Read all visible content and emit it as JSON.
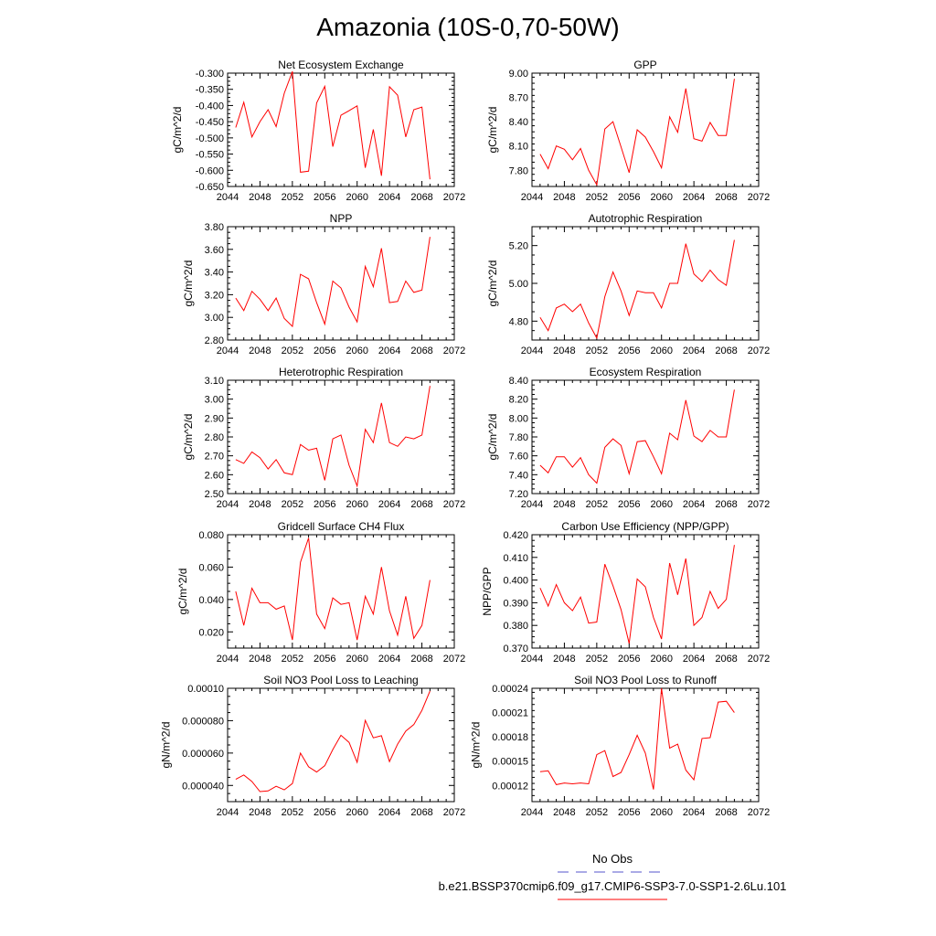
{
  "page": {
    "title": "Amazonia (10S-0,70-50W)"
  },
  "legend": {
    "entries": [
      {
        "label": "No Obs",
        "color": "#5555cc",
        "style": "dashed"
      },
      {
        "label": "b.e21.BSSP370cmip6.f09_g17.CMIP6-SSP3-7.0-SSP1-2.6Lu.101",
        "color": "#ff0000",
        "style": "solid"
      }
    ]
  },
  "chart_data": [
    {
      "type": "line",
      "title": "Net Ecosystem Exchange",
      "xlabel": "",
      "ylabel": "gC/m^2/d",
      "xlim": [
        2044,
        2072
      ],
      "ylim": [
        -0.65,
        -0.3
      ],
      "xticks": [
        "2044",
        "2048",
        "2052",
        "2056",
        "2060",
        "2064",
        "2068",
        "2072"
      ],
      "yticks": [
        -0.3,
        -0.35,
        -0.4,
        -0.45,
        -0.5,
        -0.55,
        -0.6,
        -0.65
      ],
      "yticklabels": [
        "-0.300",
        "-0.350",
        "-0.400",
        "-0.450",
        "-0.500",
        "-0.550",
        "-0.600",
        "-0.650"
      ],
      "color": "#ff0000",
      "x": [
        2045,
        2046,
        2047,
        2048,
        2049,
        2050,
        2051,
        2052,
        2053,
        2054,
        2055,
        2056,
        2057,
        2058,
        2059,
        2060,
        2061,
        2062,
        2063,
        2064,
        2065,
        2066,
        2067,
        2068,
        2069
      ],
      "y": [
        -0.468,
        -0.39,
        -0.497,
        -0.45,
        -0.413,
        -0.465,
        -0.362,
        -0.295,
        -0.606,
        -0.603,
        -0.392,
        -0.341,
        -0.527,
        -0.43,
        -0.416,
        -0.401,
        -0.592,
        -0.474,
        -0.617,
        -0.342,
        -0.368,
        -0.497,
        -0.413,
        -0.405,
        -0.628
      ]
    },
    {
      "type": "line",
      "title": "GPP",
      "xlabel": "",
      "ylabel": "gC/m^2/d",
      "xlim": [
        2044,
        2072
      ],
      "ylim": [
        7.6,
        9.0
      ],
      "xticks": [
        "2044",
        "2048",
        "2052",
        "2056",
        "2060",
        "2064",
        "2068",
        "2072"
      ],
      "yticks": [
        9.0,
        8.7,
        8.4,
        8.1,
        7.8
      ],
      "yticklabels": [
        "9.00",
        "8.70",
        "8.40",
        "8.10",
        "7.80"
      ],
      "color": "#ff0000",
      "x": [
        2045,
        2046,
        2047,
        2048,
        2049,
        2050,
        2051,
        2052,
        2053,
        2054,
        2055,
        2056,
        2057,
        2058,
        2059,
        2060,
        2061,
        2062,
        2063,
        2064,
        2065,
        2066,
        2067,
        2068,
        2069
      ],
      "y": [
        8.0,
        7.82,
        8.1,
        8.06,
        7.93,
        8.07,
        7.8,
        7.62,
        8.31,
        8.4,
        8.09,
        7.77,
        8.3,
        8.21,
        8.03,
        7.83,
        8.46,
        8.27,
        8.81,
        8.19,
        8.16,
        8.39,
        8.23,
        8.23,
        8.93
      ]
    },
    {
      "type": "line",
      "title": "NPP",
      "xlabel": "",
      "ylabel": "gC/m^2/d",
      "xlim": [
        2044,
        2072
      ],
      "ylim": [
        2.8,
        3.8
      ],
      "xticks": [
        "2044",
        "2048",
        "2052",
        "2056",
        "2060",
        "2064",
        "2068",
        "2072"
      ],
      "yticks": [
        3.8,
        3.6,
        3.4,
        3.2,
        3.0,
        2.8
      ],
      "yticklabels": [
        "3.80",
        "3.60",
        "3.40",
        "3.20",
        "3.00",
        "2.80"
      ],
      "color": "#ff0000",
      "x": [
        2045,
        2046,
        2047,
        2048,
        2049,
        2050,
        2051,
        2052,
        2053,
        2054,
        2055,
        2056,
        2057,
        2058,
        2059,
        2060,
        2061,
        2062,
        2063,
        2064,
        2065,
        2066,
        2067,
        2068,
        2069
      ],
      "y": [
        3.17,
        3.06,
        3.23,
        3.16,
        3.06,
        3.17,
        2.99,
        2.92,
        3.38,
        3.34,
        3.13,
        2.94,
        3.32,
        3.26,
        3.09,
        2.96,
        3.45,
        3.27,
        3.61,
        3.13,
        3.14,
        3.32,
        3.22,
        3.24,
        3.71
      ]
    },
    {
      "type": "line",
      "title": "Autotrophic Respiration",
      "xlabel": "",
      "ylabel": "gC/m^2/d",
      "xlim": [
        2044,
        2072
      ],
      "ylim": [
        4.7,
        5.3
      ],
      "xticks": [
        "2044",
        "2048",
        "2052",
        "2056",
        "2060",
        "2064",
        "2068",
        "2072"
      ],
      "yticks": [
        5.2,
        5.0,
        4.8
      ],
      "yticklabels": [
        "5.20",
        "5.00",
        "4.80"
      ],
      "color": "#ff0000",
      "x": [
        2045,
        2046,
        2047,
        2048,
        2049,
        2050,
        2051,
        2052,
        2053,
        2054,
        2055,
        2056,
        2057,
        2058,
        2059,
        2060,
        2061,
        2062,
        2063,
        2064,
        2065,
        2066,
        2067,
        2068,
        2069
      ],
      "y": [
        4.82,
        4.75,
        4.87,
        4.89,
        4.85,
        4.89,
        4.79,
        4.71,
        4.93,
        5.06,
        4.96,
        4.83,
        4.96,
        4.95,
        4.95,
        4.87,
        5.0,
        5.0,
        5.21,
        5.05,
        5.01,
        5.07,
        5.02,
        4.99,
        5.23
      ]
    },
    {
      "type": "line",
      "title": "Heterotrophic Respiration",
      "xlabel": "",
      "ylabel": "gC/m^2/d",
      "xlim": [
        2044,
        2072
      ],
      "ylim": [
        2.5,
        3.1
      ],
      "xticks": [
        "2044",
        "2048",
        "2052",
        "2056",
        "2060",
        "2064",
        "2068",
        "2072"
      ],
      "yticks": [
        3.1,
        3.0,
        2.9,
        2.8,
        2.7,
        2.6,
        2.5
      ],
      "yticklabels": [
        "3.10",
        "3.00",
        "2.90",
        "2.80",
        "2.70",
        "2.60",
        "2.50"
      ],
      "color": "#ff0000",
      "x": [
        2045,
        2046,
        2047,
        2048,
        2049,
        2050,
        2051,
        2052,
        2053,
        2054,
        2055,
        2056,
        2057,
        2058,
        2059,
        2060,
        2061,
        2062,
        2063,
        2064,
        2065,
        2066,
        2067,
        2068,
        2069
      ],
      "y": [
        2.68,
        2.66,
        2.72,
        2.69,
        2.63,
        2.68,
        2.61,
        2.6,
        2.76,
        2.73,
        2.74,
        2.57,
        2.79,
        2.81,
        2.65,
        2.54,
        2.84,
        2.77,
        2.98,
        2.77,
        2.75,
        2.8,
        2.79,
        2.81,
        3.07
      ]
    },
    {
      "type": "line",
      "title": "Ecosystem Respiration",
      "xlabel": "",
      "ylabel": "gC/m^2/d",
      "xlim": [
        2044,
        2072
      ],
      "ylim": [
        7.2,
        8.4
      ],
      "xticks": [
        "2044",
        "2048",
        "2052",
        "2056",
        "2060",
        "2064",
        "2068",
        "2072"
      ],
      "yticks": [
        8.4,
        8.2,
        8.0,
        7.8,
        7.6,
        7.4,
        7.2
      ],
      "yticklabels": [
        "8.40",
        "8.20",
        "8.00",
        "7.80",
        "7.60",
        "7.40",
        "7.20"
      ],
      "color": "#ff0000",
      "x": [
        2045,
        2046,
        2047,
        2048,
        2049,
        2050,
        2051,
        2052,
        2053,
        2054,
        2055,
        2056,
        2057,
        2058,
        2059,
        2060,
        2061,
        2062,
        2063,
        2064,
        2065,
        2066,
        2067,
        2068,
        2069
      ],
      "y": [
        7.5,
        7.42,
        7.59,
        7.59,
        7.48,
        7.58,
        7.4,
        7.31,
        7.69,
        7.78,
        7.71,
        7.41,
        7.75,
        7.76,
        7.59,
        7.41,
        7.84,
        7.77,
        8.19,
        7.81,
        7.75,
        7.87,
        7.8,
        7.8,
        8.3
      ]
    },
    {
      "type": "line",
      "title": "Gridcell Surface CH4 Flux",
      "xlabel": "",
      "ylabel": "gC/m^2/d",
      "xlim": [
        2044,
        2072
      ],
      "ylim": [
        0.01,
        0.08
      ],
      "xticks": [
        "2044",
        "2048",
        "2052",
        "2056",
        "2060",
        "2064",
        "2068",
        "2072"
      ],
      "yticks": [
        0.08,
        0.06,
        0.04,
        0.02
      ],
      "yticklabels": [
        "0.080",
        "0.060",
        "0.040",
        "0.020"
      ],
      "color": "#ff0000",
      "x": [
        2045,
        2046,
        2047,
        2048,
        2049,
        2050,
        2051,
        2052,
        2053,
        2054,
        2055,
        2056,
        2057,
        2058,
        2059,
        2060,
        2061,
        2062,
        2063,
        2064,
        2065,
        2066,
        2067,
        2068,
        2069
      ],
      "y": [
        0.045,
        0.024,
        0.047,
        0.038,
        0.038,
        0.034,
        0.036,
        0.015,
        0.063,
        0.078,
        0.031,
        0.022,
        0.041,
        0.037,
        0.038,
        0.015,
        0.042,
        0.031,
        0.06,
        0.033,
        0.018,
        0.042,
        0.016,
        0.024,
        0.052
      ]
    },
    {
      "type": "line",
      "title": "Carbon Use Efficiency (NPP/GPP)",
      "xlabel": "",
      "ylabel": "NPP/GPP",
      "xlim": [
        2044,
        2072
      ],
      "ylim": [
        0.37,
        0.42
      ],
      "xticks": [
        "2044",
        "2048",
        "2052",
        "2056",
        "2060",
        "2064",
        "2068",
        "2072"
      ],
      "yticks": [
        0.42,
        0.41,
        0.4,
        0.39,
        0.38,
        0.37
      ],
      "yticklabels": [
        "0.420",
        "0.410",
        "0.400",
        "0.390",
        "0.380",
        "0.370"
      ],
      "color": "#ff0000",
      "x": [
        2045,
        2046,
        2047,
        2048,
        2049,
        2050,
        2051,
        2052,
        2053,
        2054,
        2055,
        2056,
        2057,
        2058,
        2059,
        2060,
        2061,
        2062,
        2063,
        2064,
        2065,
        2066,
        2067,
        2068,
        2069
      ],
      "y": [
        0.3965,
        0.3885,
        0.398,
        0.39,
        0.3865,
        0.3925,
        0.381,
        0.3815,
        0.407,
        0.3975,
        0.387,
        0.372,
        0.4005,
        0.397,
        0.3835,
        0.374,
        0.4075,
        0.3935,
        0.4095,
        0.38,
        0.3835,
        0.395,
        0.3875,
        0.3915,
        0.4155
      ]
    },
    {
      "type": "line",
      "title": "Soil NO3 Pool Loss to Leaching",
      "xlabel": "",
      "ylabel": "gN/m^2/d",
      "xlim": [
        2044,
        2072
      ],
      "ylim": [
        3e-05,
        0.0001
      ],
      "xticks": [
        "2044",
        "2048",
        "2052",
        "2056",
        "2060",
        "2064",
        "2068",
        "2072"
      ],
      "yticks": [
        0.0001,
        8e-05,
        6e-05,
        4e-05
      ],
      "yticklabels": [
        "0.00010",
        "0.000080",
        "0.000060",
        "0.000040"
      ],
      "color": "#ff0000",
      "x": [
        2045,
        2046,
        2047,
        2048,
        2049,
        2050,
        2051,
        2052,
        2053,
        2054,
        2055,
        2056,
        2057,
        2058,
        2059,
        2060,
        2061,
        2062,
        2063,
        2064,
        2065,
        2066,
        2067,
        2068,
        2069
      ],
      "y": [
        4.38e-05,
        4.65e-05,
        4.24e-05,
        3.62e-05,
        3.66e-05,
        3.95e-05,
        3.73e-05,
        4.12e-05,
        6e-05,
        5.15e-05,
        4.83e-05,
        5.22e-05,
        6.22e-05,
        7.1e-05,
        6.66e-05,
        5.43e-05,
        8.02e-05,
        6.94e-05,
        7.07e-05,
        5.47e-05,
        6.55e-05,
        7.36e-05,
        7.76e-05,
        8.64e-05,
        9.83e-05
      ]
    },
    {
      "type": "line",
      "title": "Soil NO3 Pool Loss to Runoff",
      "xlabel": "",
      "ylabel": "gN/m^2/d",
      "xlim": [
        2044,
        2072
      ],
      "ylim": [
        0.0001,
        0.00024
      ],
      "xticks": [
        "2044",
        "2048",
        "2052",
        "2056",
        "2060",
        "2064",
        "2068",
        "2072"
      ],
      "yticks": [
        0.00024,
        0.00021,
        0.00018,
        0.00015,
        0.00012
      ],
      "yticklabels": [
        "0.00024",
        "0.00021",
        "0.00018",
        "0.00015",
        "0.00012"
      ],
      "color": "#ff0000",
      "x": [
        2045,
        2046,
        2047,
        2048,
        2049,
        2050,
        2051,
        2052,
        2053,
        2054,
        2055,
        2056,
        2057,
        2058,
        2059,
        2060,
        2061,
        2062,
        2063,
        2064,
        2065,
        2066,
        2067,
        2068,
        2069
      ],
      "y": [
        0.000137,
        0.000138,
        0.000121,
        0.000123,
        0.000122,
        0.000123,
        0.000122,
        0.000158,
        0.000163,
        0.000131,
        0.000136,
        0.000158,
        0.000182,
        0.00016,
        0.000115,
        0.00024,
        0.000166,
        0.000171,
        0.000139,
        0.000127,
        0.000178,
        0.000179,
        0.000223,
        0.000224,
        0.00021
      ]
    }
  ]
}
